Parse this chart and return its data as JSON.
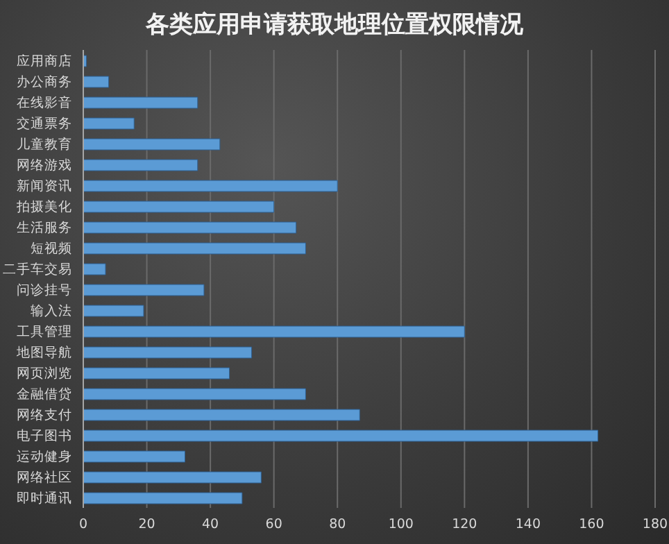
{
  "chart_data": {
    "type": "bar",
    "orientation": "horizontal",
    "title": "各类应用申请获取地理位置权限情况",
    "categories": [
      "应用商店",
      "办公商务",
      "在线影音",
      "交通票务",
      "儿童教育",
      "网络游戏",
      "新闻资讯",
      "拍摄美化",
      "生活服务",
      "短视频",
      "二手车交易",
      "问诊挂号",
      "输入法",
      "工具管理",
      "地图导航",
      "网页浏览",
      "金融借贷",
      "网络支付",
      "电子图书",
      "运动健身",
      "网络社区",
      "即时通讯"
    ],
    "values": [
      1,
      8,
      36,
      16,
      43,
      36,
      80,
      60,
      67,
      70,
      7,
      38,
      19,
      120,
      53,
      46,
      70,
      87,
      162,
      32,
      56,
      50
    ],
    "color": "#5b9bd5",
    "xlim": [
      0,
      180
    ],
    "xticks": [
      0,
      20,
      40,
      60,
      80,
      100,
      120,
      140,
      160,
      180
    ],
    "grid": "x",
    "legend": false
  }
}
